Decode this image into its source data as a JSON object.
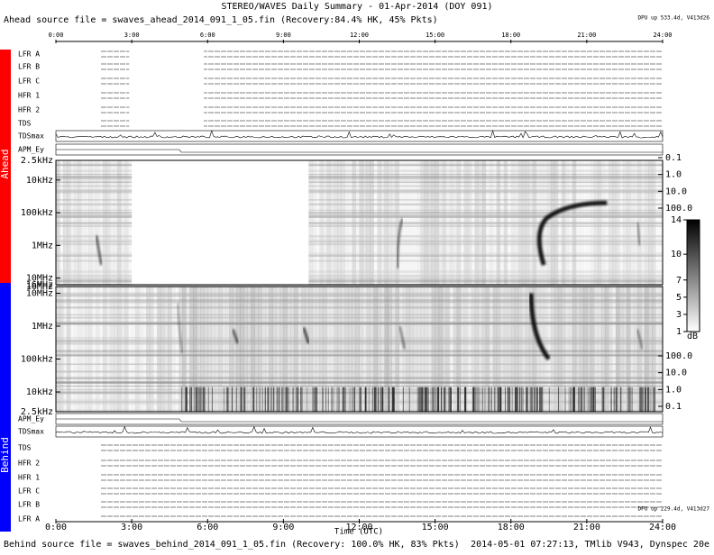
{
  "chart_data": {
    "type": "spectrogram",
    "title": "STEREO/WAVES Daily Summary - 01-Apr-2014 (DOY 091)",
    "ahead_source": "Ahead source file = swaves_ahead_2014_091_1_05.fin (Recovery:84.4% HK, 45% Pkts)",
    "behind_source": "Behind source file = swaves_behind_2014_091_1_05.fin (Recovery: 100.0% HK, 83% Pkts)",
    "ahead_dpu": "DPU up 533.4d, V413d26",
    "behind_dpu": "DPU up 229.4d, V413d27",
    "footer_stamp": "2014-05-01 07:27:13, TMlib V943, Dynspec 20e",
    "xlabel": "Time (UTC)",
    "xlim": [
      0,
      24
    ],
    "xticks": [
      {
        "value": 0,
        "label": "0:00"
      },
      {
        "value": 3,
        "label": "3:00"
      },
      {
        "value": 6,
        "label": "6:00"
      },
      {
        "value": 9,
        "label": "9:00"
      },
      {
        "value": 12,
        "label": "12:00"
      },
      {
        "value": 15,
        "label": "15:00"
      },
      {
        "value": 18,
        "label": "18:00"
      },
      {
        "value": 21,
        "label": "21:00"
      },
      {
        "value": 24,
        "label": "24:00"
      }
    ],
    "spacecraft": [
      {
        "name": "Ahead",
        "color": "#ff0000"
      },
      {
        "name": "Behind",
        "color": "#0000ff"
      }
    ],
    "ahead_rows": [
      "LFR A",
      "LFR B",
      "LFR C",
      "HFR 1",
      "HFR 2",
      "TDS",
      "TDSmax",
      "APM_Ey"
    ],
    "behind_rows": [
      "APM_Ey",
      "TDSmax",
      "TDS",
      "HFR 2",
      "HFR 1",
      "LFR C",
      "LFR B",
      "LFR A"
    ],
    "ylog": true,
    "ylim": [
      2500,
      16000000
    ],
    "yticks": [
      {
        "value": 2500,
        "label": "2.5kHz"
      },
      {
        "value": 10000,
        "label": "10kHz"
      },
      {
        "value": 100000,
        "label": "100kHz"
      },
      {
        "value": 1000000,
        "label": "1MHz"
      },
      {
        "value": 10000000,
        "label": "10MHz"
      },
      {
        "value": 16000000,
        "label": "16MHz"
      }
    ],
    "y2log": true,
    "y2lim": [
      0.1,
      100
    ],
    "y2ticks": [
      {
        "value": 0.1,
        "label": "0.1"
      },
      {
        "value": 1,
        "label": "1.0"
      },
      {
        "value": 10,
        "label": "10.0"
      },
      {
        "value": 100,
        "label": "100.0"
      }
    ],
    "colorbar": {
      "lim": [
        1,
        14
      ],
      "ticks": [
        1,
        3,
        5,
        7,
        10,
        14
      ],
      "label": "dB"
    }
  }
}
